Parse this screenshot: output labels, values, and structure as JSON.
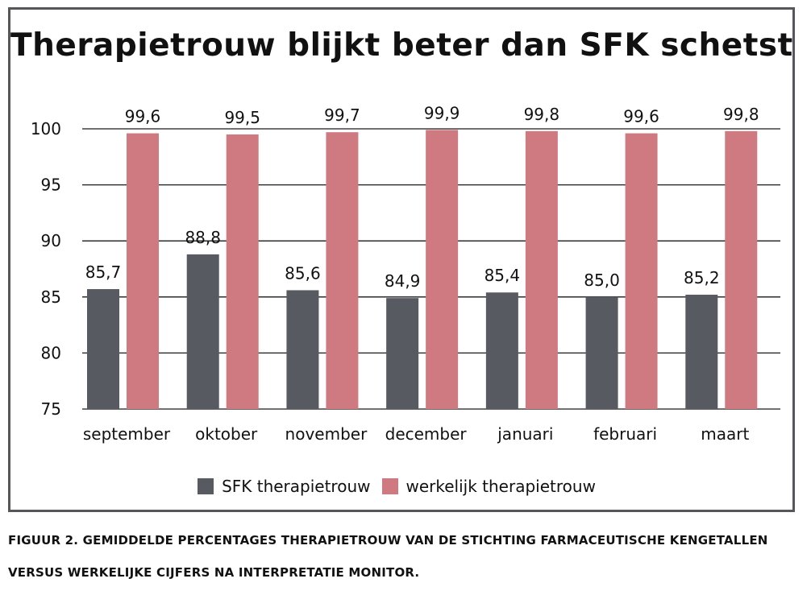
{
  "colors": {
    "sfk": "#575a61",
    "werkelijk": "#cf7a80",
    "frame": "#55575b",
    "gridline": "#1a1a1a"
  },
  "caption": {
    "line1": "FIGUUR 2. GEMIDDELDE PERCENTAGES THERAPIETROUW VAN DE STICHTING FARMACEUTISCHE KENGETALLEN",
    "line2": "VERSUS WERKELIJKE CIJFERS NA INTERPRETATIE MONITOR."
  },
  "chart_data": {
    "type": "bar",
    "title": "Therapietrouw blijkt beter dan SFK schetst",
    "xlabel": "",
    "ylabel": "",
    "categories": [
      "september",
      "oktober",
      "november",
      "december",
      "januari",
      "februari",
      "maart"
    ],
    "series": [
      {
        "name": "SFK therapietrouw",
        "values": [
          85.7,
          88.8,
          85.6,
          84.9,
          85.4,
          85.0,
          85.2
        ],
        "labels": [
          "85,7",
          "88,8",
          "85,6",
          "84,9",
          "85,4",
          "85,0",
          "85,2"
        ]
      },
      {
        "name": "werkelijk therapietrouw",
        "values": [
          99.6,
          99.5,
          99.7,
          99.9,
          99.8,
          99.6,
          99.8
        ],
        "labels": [
          "99,6",
          "99,5",
          "99,7",
          "99,9",
          "99,8",
          "99,6",
          "99,8"
        ]
      }
    ],
    "ylim": [
      75,
      100
    ],
    "yticks": [
      "75",
      "80",
      "85",
      "90",
      "95",
      "100"
    ],
    "grid": true,
    "legend_position": "bottom"
  }
}
